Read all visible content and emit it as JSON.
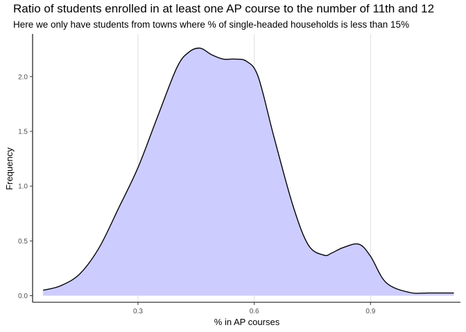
{
  "chart_data": {
    "type": "area",
    "title": "Ratio of students enrolled in at least one AP course to the number of 11th and 12",
    "subtitle": "Here we only have students from towns where % of single-headed households is less than 15%",
    "xlabel": "% in AP courses",
    "ylabel": "Frequency",
    "xlim": [
      0.028,
      1.132
    ],
    "ylim": [
      -0.06,
      2.39
    ],
    "x_ticks": [
      0.3,
      0.6,
      0.9
    ],
    "x_tick_labels": [
      "0.3",
      "0.6",
      "0.9"
    ],
    "y_ticks": [
      0.0,
      0.5,
      1.0,
      1.5,
      2.0
    ],
    "y_tick_labels": [
      "0.0",
      "0.5",
      "1.0",
      "1.5",
      "2.0"
    ],
    "grid": "vertical major lines only",
    "fill_color": "#ccccff",
    "line_color": "#000000",
    "series": [
      {
        "x": [
          0.055,
          0.1,
          0.15,
          0.2,
          0.25,
          0.3,
          0.35,
          0.4,
          0.43,
          0.46,
          0.49,
          0.52,
          0.55,
          0.58,
          0.61,
          0.65,
          0.7,
          0.74,
          0.78,
          0.8,
          0.83,
          0.87,
          0.9,
          0.94,
          1.0,
          1.05,
          1.115
        ],
        "y": [
          0.05,
          0.09,
          0.2,
          0.44,
          0.8,
          1.17,
          1.63,
          2.08,
          2.22,
          2.26,
          2.2,
          2.16,
          2.16,
          2.14,
          2.0,
          1.46,
          0.82,
          0.46,
          0.37,
          0.39,
          0.44,
          0.47,
          0.36,
          0.12,
          0.03,
          0.025,
          0.025
        ]
      }
    ]
  }
}
